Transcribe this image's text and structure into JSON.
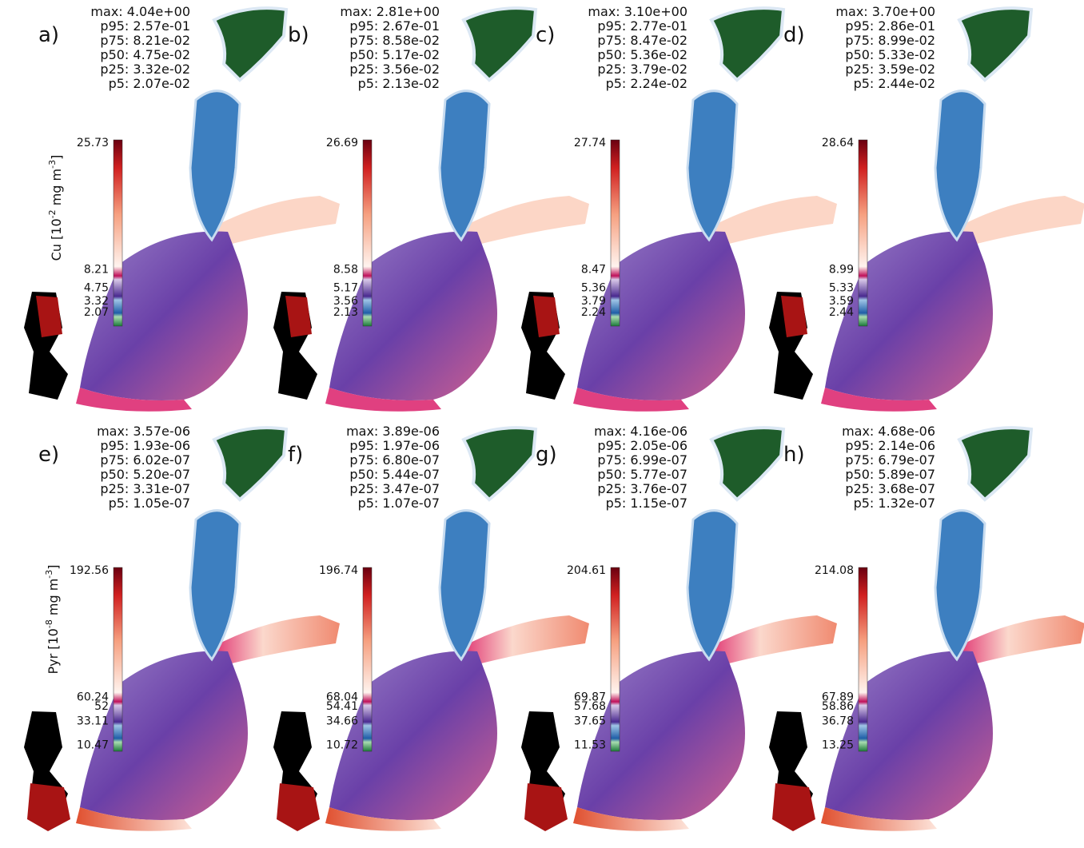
{
  "axis_labels": [
    {
      "parts": [
        "Cu  [10",
        "-2",
        " mg m",
        "-3",
        "]"
      ]
    },
    {
      "parts": [
        "Pyr  [10",
        "-8",
        " mg m",
        "-3",
        "]"
      ]
    }
  ],
  "panels": [
    {
      "label": "a)",
      "stats": [
        "max: 4.04e+00",
        "p95: 2.57e-01",
        "p75: 8.21e-02",
        "p50: 4.75e-02",
        "p25: 3.32e-02",
        "p5: 2.07e-02"
      ],
      "colorbar": [
        "25.73",
        "8.21",
        "4.75",
        "3.32",
        "2.07"
      ]
    },
    {
      "label": "b)",
      "stats": [
        "max: 2.81e+00",
        "p95: 2.67e-01",
        "p75: 8.58e-02",
        "p50: 5.17e-02",
        "p25: 3.56e-02",
        "p5: 2.13e-02"
      ],
      "colorbar": [
        "26.69",
        "8.58",
        "5.17",
        "3.56",
        "2.13"
      ]
    },
    {
      "label": "c)",
      "stats": [
        "max: 3.10e+00",
        "p95: 2.77e-01",
        "p75: 8.47e-02",
        "p50: 5.36e-02",
        "p25: 3.79e-02",
        "p5: 2.24e-02"
      ],
      "colorbar": [
        "27.74",
        "8.47",
        "5.36",
        "3.79",
        "2.24"
      ]
    },
    {
      "label": "d)",
      "stats": [
        "max: 3.70e+00",
        "p95: 2.86e-01",
        "p75: 8.99e-02",
        "p50: 5.33e-02",
        "p25: 3.59e-02",
        "p5: 2.44e-02"
      ],
      "colorbar": [
        "28.64",
        "8.99",
        "5.33",
        "3.59",
        "2.44"
      ]
    },
    {
      "label": "e)",
      "stats": [
        "max: 3.57e-06",
        "p95: 1.93e-06",
        "p75: 6.02e-07",
        "p50: 5.20e-07",
        "p25: 3.31e-07",
        "p5: 1.05e-07"
      ],
      "colorbar": [
        "192.56",
        "60.24",
        "52",
        "33.11",
        "10.47"
      ]
    },
    {
      "label": "f)",
      "stats": [
        "max: 3.89e-06",
        "p95: 1.97e-06",
        "p75: 6.80e-07",
        "p50: 5.44e-07",
        "p25: 3.47e-07",
        "p5: 1.07e-07"
      ],
      "colorbar": [
        "196.74",
        "68.04",
        "54.41",
        "34.66",
        "10.72"
      ]
    },
    {
      "label": "g)",
      "stats": [
        "max: 4.16e-06",
        "p95: 2.05e-06",
        "p75: 6.99e-07",
        "p50: 5.77e-07",
        "p25: 3.76e-07",
        "p5: 1.15e-07"
      ],
      "colorbar": [
        "204.61",
        "69.87",
        "57.68",
        "37.65",
        "11.53"
      ]
    },
    {
      "label": "h)",
      "stats": [
        "max: 4.68e-06",
        "p95: 2.14e-06",
        "p75: 6.79e-07",
        "p50: 5.89e-07",
        "p25: 3.68e-07",
        "p5: 1.32e-07"
      ],
      "colorbar": [
        "214.08",
        "67.89",
        "58.86",
        "36.78",
        "13.25"
      ]
    }
  ]
}
